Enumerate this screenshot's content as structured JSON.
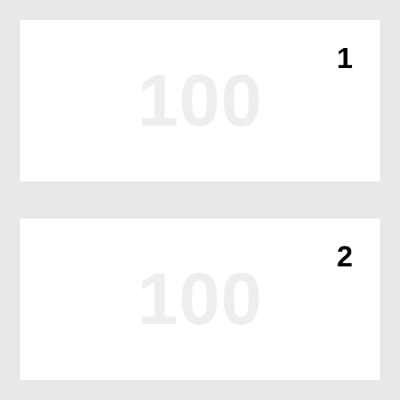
{
  "cards": [
    {
      "value_watermark": "100",
      "number": "1"
    },
    {
      "value_watermark": "100",
      "number": "2"
    }
  ],
  "colors": {
    "background": "#e8e8e8",
    "card": "#ffffff",
    "watermark": "#eeeeee",
    "number": "#000000"
  }
}
